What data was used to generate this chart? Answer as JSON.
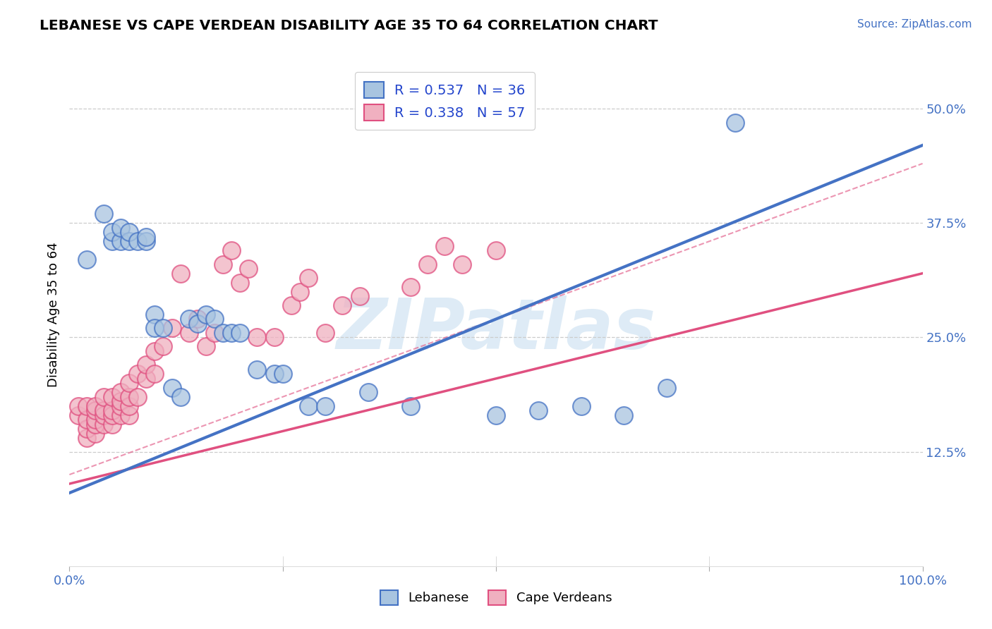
{
  "title": "LEBANESE VS CAPE VERDEAN DISABILITY AGE 35 TO 64 CORRELATION CHART",
  "source": "Source: ZipAtlas.com",
  "ylabel": "Disability Age 35 to 64",
  "yticks": [
    0.0,
    0.125,
    0.25,
    0.375,
    0.5
  ],
  "ytick_labels": [
    "",
    "12.5%",
    "25.0%",
    "37.5%",
    "50.0%"
  ],
  "watermark_text": "ZIPatlas",
  "blue_color": "#4472c4",
  "pink_color": "#e05080",
  "blue_fill": "#a8c4e0",
  "pink_fill": "#f0b0c0",
  "blue_R": 0.537,
  "blue_N": 36,
  "pink_R": 0.338,
  "pink_N": 57,
  "blue_scatter_x": [
    0.02,
    0.04,
    0.05,
    0.05,
    0.06,
    0.06,
    0.07,
    0.07,
    0.08,
    0.09,
    0.09,
    0.1,
    0.1,
    0.11,
    0.12,
    0.13,
    0.14,
    0.15,
    0.16,
    0.17,
    0.18,
    0.19,
    0.2,
    0.22,
    0.24,
    0.25,
    0.28,
    0.3,
    0.35,
    0.4,
    0.5,
    0.55,
    0.6,
    0.65,
    0.7,
    0.78
  ],
  "blue_scatter_y": [
    0.335,
    0.385,
    0.355,
    0.365,
    0.355,
    0.37,
    0.355,
    0.365,
    0.355,
    0.355,
    0.36,
    0.275,
    0.26,
    0.26,
    0.195,
    0.185,
    0.27,
    0.265,
    0.275,
    0.27,
    0.255,
    0.255,
    0.255,
    0.215,
    0.21,
    0.21,
    0.175,
    0.175,
    0.19,
    0.175,
    0.165,
    0.17,
    0.175,
    0.165,
    0.195,
    0.485
  ],
  "pink_scatter_x": [
    0.01,
    0.01,
    0.02,
    0.02,
    0.02,
    0.02,
    0.03,
    0.03,
    0.03,
    0.03,
    0.03,
    0.04,
    0.04,
    0.04,
    0.04,
    0.05,
    0.05,
    0.05,
    0.05,
    0.06,
    0.06,
    0.06,
    0.06,
    0.07,
    0.07,
    0.07,
    0.07,
    0.08,
    0.08,
    0.09,
    0.09,
    0.1,
    0.1,
    0.11,
    0.12,
    0.13,
    0.14,
    0.15,
    0.16,
    0.17,
    0.18,
    0.19,
    0.2,
    0.21,
    0.22,
    0.24,
    0.26,
    0.27,
    0.28,
    0.3,
    0.32,
    0.34,
    0.4,
    0.42,
    0.44,
    0.46,
    0.5
  ],
  "pink_scatter_y": [
    0.165,
    0.175,
    0.14,
    0.15,
    0.16,
    0.175,
    0.145,
    0.155,
    0.16,
    0.17,
    0.175,
    0.155,
    0.165,
    0.17,
    0.185,
    0.155,
    0.165,
    0.17,
    0.185,
    0.165,
    0.175,
    0.18,
    0.19,
    0.165,
    0.175,
    0.185,
    0.2,
    0.185,
    0.21,
    0.205,
    0.22,
    0.21,
    0.235,
    0.24,
    0.26,
    0.32,
    0.255,
    0.27,
    0.24,
    0.255,
    0.33,
    0.345,
    0.31,
    0.325,
    0.25,
    0.25,
    0.285,
    0.3,
    0.315,
    0.255,
    0.285,
    0.295,
    0.305,
    0.33,
    0.35,
    0.33,
    0.345
  ],
  "blue_line": [
    0.0,
    1.0,
    0.08,
    0.46
  ],
  "pink_line": [
    0.0,
    1.0,
    0.09,
    0.32
  ],
  "dash_line": [
    0.0,
    1.0,
    0.1,
    0.44
  ],
  "xlim": [
    0.0,
    1.0
  ],
  "ylim": [
    0.0,
    0.55
  ]
}
